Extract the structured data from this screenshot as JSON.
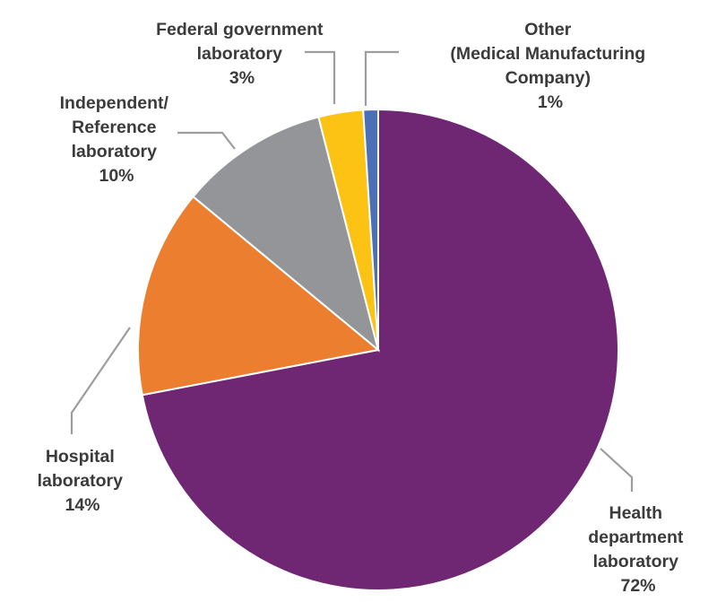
{
  "chart_data": {
    "type": "pie",
    "title": "",
    "slices": [
      {
        "name": "Health department laboratory",
        "value": 72,
        "color": "#6f2774",
        "label_lines": [
          "Health",
          "department",
          "laboratory",
          "72%"
        ]
      },
      {
        "name": "Hospital laboratory",
        "value": 14,
        "color": "#ec7e2f",
        "label_lines": [
          "Hospital",
          "laboratory",
          "14%"
        ]
      },
      {
        "name": "Independent/Reference laboratory",
        "value": 10,
        "color": "#939598",
        "label_lines": [
          "Independent/",
          "Reference",
          "laboratory",
          "10%"
        ]
      },
      {
        "name": "Federal government laboratory",
        "value": 3,
        "color": "#fcc314",
        "label_lines": [
          "Federal government",
          "laboratory",
          "3%"
        ]
      },
      {
        "name": "Other (Medical Manufacturing Company)",
        "value": 1,
        "color": "#4c70b8",
        "label_lines": [
          "Other",
          "(Medical Manufacturing",
          "Company)",
          "1%"
        ]
      }
    ]
  }
}
